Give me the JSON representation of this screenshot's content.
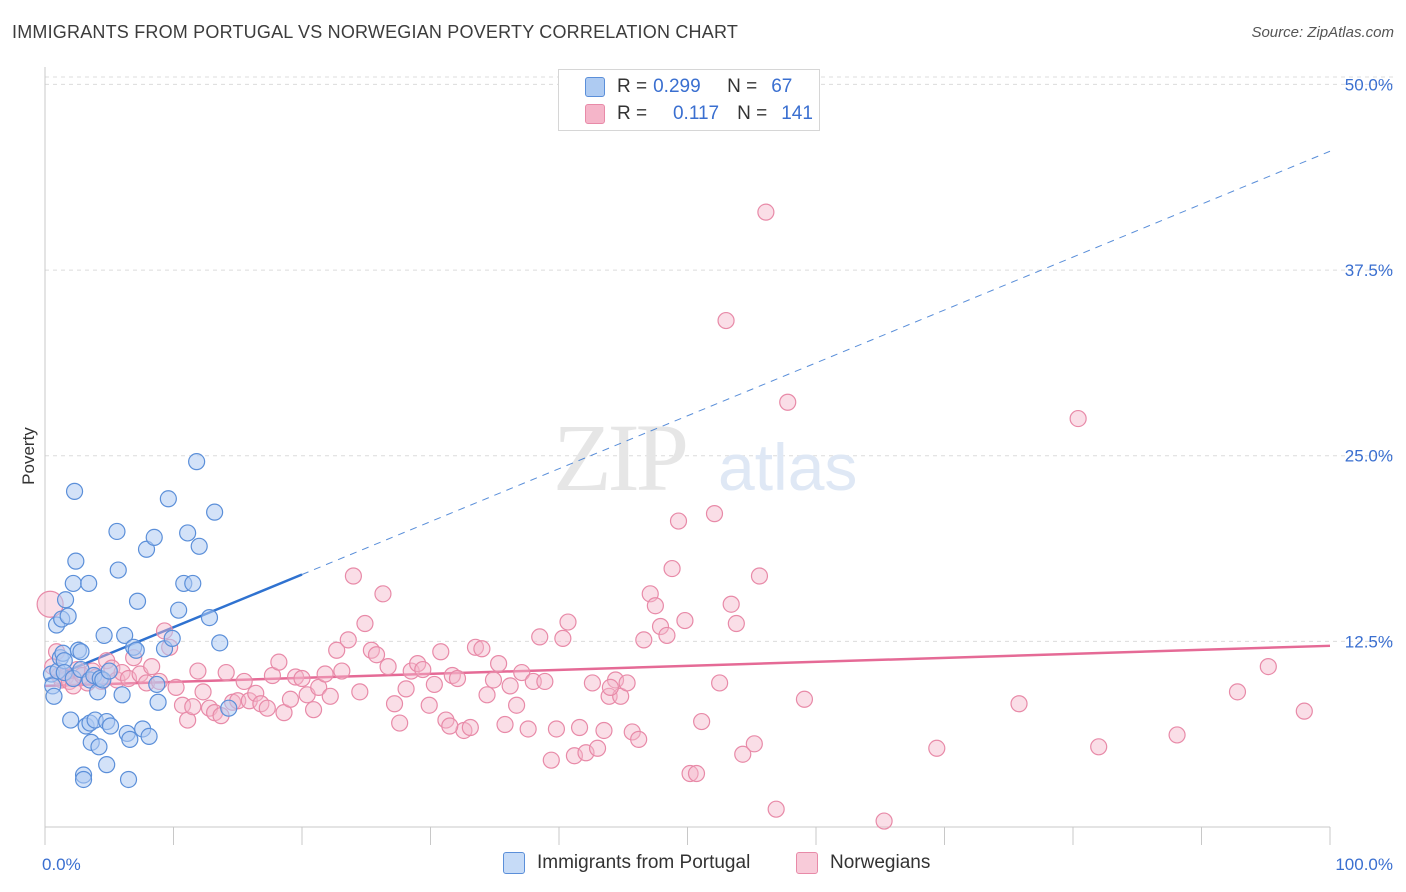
{
  "header": {
    "title": "IMMIGRANTS FROM PORTUGAL VS NORWEGIAN POVERTY CORRELATION CHART",
    "source": "Source: ZipAtlas.com"
  },
  "legend_stats": {
    "r_label": "R =",
    "n_label": "N =",
    "blue": {
      "r": "0.299",
      "n": "67"
    },
    "pink": {
      "r": "0.117",
      "n": "141"
    }
  },
  "watermark": {
    "zip": "ZIP",
    "atlas": "atlas"
  },
  "colors": {
    "blue_fill": "#aecbf2",
    "blue_stroke": "#5b8fd9",
    "blue_line": "#2f72d0",
    "pink_fill": "#f5b5c9",
    "pink_stroke": "#e88aa8",
    "pink_line": "#e56a96",
    "tick_label": "#3a6fd0",
    "grid": "#dcdcdc"
  },
  "chart_data": {
    "type": "scatter",
    "title": "IMMIGRANTS FROM PORTUGAL VS NORWEGIAN POVERTY CORRELATION CHART",
    "ylabel": "Poverty",
    "xlabel": "",
    "xlim": [
      0,
      100
    ],
    "ylim": [
      0,
      50.5
    ],
    "x_tick_labels": [
      "0.0%",
      "100.0%"
    ],
    "y_ticks": [
      12.5,
      25.0,
      37.5,
      50.0
    ],
    "y_tick_labels": [
      "12.5%",
      "25.0%",
      "37.5%",
      "50.0%"
    ],
    "grid": true,
    "legend_position": "top-center",
    "series": [
      {
        "name": "Immigrants from Portugal",
        "color": "#5b8fd9",
        "r": 0.299,
        "n": 67,
        "trend": {
          "solid": [
            [
              0,
              9.9
            ],
            [
              20,
              17.0
            ]
          ],
          "dashed": [
            [
              20,
              17.0
            ],
            [
              100,
              45.5
            ]
          ]
        },
        "points": [
          [
            0.5,
            10.3
          ],
          [
            0.6,
            9.5
          ],
          [
            0.7,
            8.8
          ],
          [
            0.9,
            13.6
          ],
          [
            1,
            10.5
          ],
          [
            1.2,
            11.4
          ],
          [
            1.3,
            14.0
          ],
          [
            1.4,
            11.7
          ],
          [
            1.5,
            11.2
          ],
          [
            1.5,
            10.4
          ],
          [
            1.6,
            15.3
          ],
          [
            1.8,
            14.2
          ],
          [
            2,
            7.2
          ],
          [
            2.2,
            10.0
          ],
          [
            2.2,
            16.4
          ],
          [
            2.3,
            22.6
          ],
          [
            2.4,
            17.9
          ],
          [
            2.6,
            11.9
          ],
          [
            2.8,
            10.6
          ],
          [
            2.8,
            11.8
          ],
          [
            3,
            3.5
          ],
          [
            3.2,
            6.8
          ],
          [
            3.4,
            16.4
          ],
          [
            3.5,
            7.0
          ],
          [
            3.5,
            9.9
          ],
          [
            3.6,
            5.7
          ],
          [
            3.8,
            10.2
          ],
          [
            3.9,
            7.2
          ],
          [
            4.1,
            9.1
          ],
          [
            4.2,
            5.4
          ],
          [
            4.3,
            10.0
          ],
          [
            4.5,
            9.9
          ],
          [
            4.6,
            12.9
          ],
          [
            4.8,
            7.1
          ],
          [
            4.8,
            4.2
          ],
          [
            5,
            10.5
          ],
          [
            5.1,
            6.8
          ],
          [
            5.6,
            19.9
          ],
          [
            5.7,
            17.3
          ],
          [
            6,
            8.9
          ],
          [
            6.2,
            12.9
          ],
          [
            6.4,
            6.3
          ],
          [
            6.6,
            5.9
          ],
          [
            6.9,
            12.1
          ],
          [
            7.1,
            11.9
          ],
          [
            7.2,
            15.2
          ],
          [
            7.6,
            6.6
          ],
          [
            7.9,
            18.7
          ],
          [
            8.1,
            6.1
          ],
          [
            8.5,
            19.5
          ],
          [
            8.7,
            9.6
          ],
          [
            8.8,
            8.4
          ],
          [
            9.3,
            12.0
          ],
          [
            9.6,
            22.1
          ],
          [
            9.9,
            12.7
          ],
          [
            10.4,
            14.6
          ],
          [
            10.8,
            16.4
          ],
          [
            11.1,
            19.8
          ],
          [
            11.5,
            16.4
          ],
          [
            11.8,
            24.6
          ],
          [
            12,
            18.9
          ],
          [
            12.8,
            14.1
          ],
          [
            13.2,
            21.2
          ],
          [
            13.6,
            12.4
          ],
          [
            14.3,
            8.0
          ],
          [
            3,
            3.2
          ],
          [
            6.5,
            3.2
          ]
        ]
      },
      {
        "name": "Norwegians",
        "color": "#e88aa8",
        "r": 0.117,
        "n": 141,
        "trend": {
          "solid": [
            [
              0,
              9.5
            ],
            [
              100,
              12.2
            ]
          ]
        },
        "points": [
          [
            0.4,
            15.0
          ],
          [
            0.6,
            10.8
          ],
          [
            0.9,
            11.8
          ],
          [
            1.1,
            10.2
          ],
          [
            1.3,
            9.9
          ],
          [
            1.6,
            10.1
          ],
          [
            1.9,
            9.8
          ],
          [
            2.2,
            9.5
          ],
          [
            2.5,
            10.6
          ],
          [
            2.9,
            10.2
          ],
          [
            3.3,
            9.7
          ],
          [
            3.7,
            10.5
          ],
          [
            4,
            10.1
          ],
          [
            4.4,
            9.8
          ],
          [
            4.8,
            11.2
          ],
          [
            5.2,
            10.7
          ],
          [
            5.6,
            9.9
          ],
          [
            6,
            10.4
          ],
          [
            6.5,
            10.0
          ],
          [
            6.9,
            11.4
          ],
          [
            7.4,
            10.3
          ],
          [
            7.9,
            9.7
          ],
          [
            8.3,
            10.8
          ],
          [
            8.9,
            9.8
          ],
          [
            9.3,
            13.2
          ],
          [
            9.7,
            12.1
          ],
          [
            10.2,
            9.4
          ],
          [
            10.7,
            8.2
          ],
          [
            11.1,
            7.2
          ],
          [
            11.5,
            8.1
          ],
          [
            11.9,
            10.5
          ],
          [
            12.3,
            9.1
          ],
          [
            12.8,
            8.0
          ],
          [
            13.2,
            7.7
          ],
          [
            13.7,
            7.5
          ],
          [
            14.1,
            10.4
          ],
          [
            14.6,
            8.4
          ],
          [
            15,
            8.5
          ],
          [
            15.5,
            9.8
          ],
          [
            15.9,
            8.5
          ],
          [
            16.4,
            9.0
          ],
          [
            16.8,
            8.3
          ],
          [
            17.3,
            8.0
          ],
          [
            17.7,
            10.2
          ],
          [
            18.2,
            11.1
          ],
          [
            18.6,
            7.7
          ],
          [
            19.1,
            8.6
          ],
          [
            19.5,
            10.1
          ],
          [
            20,
            10.0
          ],
          [
            20.4,
            8.9
          ],
          [
            20.9,
            7.9
          ],
          [
            21.3,
            9.4
          ],
          [
            21.8,
            10.3
          ],
          [
            22.2,
            8.8
          ],
          [
            22.7,
            11.9
          ],
          [
            23.1,
            10.5
          ],
          [
            23.6,
            12.6
          ],
          [
            24,
            16.9
          ],
          [
            24.5,
            9.1
          ],
          [
            24.9,
            13.7
          ],
          [
            25.4,
            11.9
          ],
          [
            25.8,
            11.6
          ],
          [
            26.3,
            15.7
          ],
          [
            26.7,
            10.8
          ],
          [
            27.2,
            8.3
          ],
          [
            27.6,
            7.0
          ],
          [
            28.1,
            9.3
          ],
          [
            28.5,
            10.5
          ],
          [
            29,
            11.0
          ],
          [
            29.4,
            10.6
          ],
          [
            29.9,
            8.2
          ],
          [
            30.3,
            9.6
          ],
          [
            30.8,
            11.8
          ],
          [
            31.2,
            7.2
          ],
          [
            31.7,
            10.2
          ],
          [
            32.1,
            10.0
          ],
          [
            32.6,
            6.5
          ],
          [
            33.1,
            6.7
          ],
          [
            33.5,
            12.1
          ],
          [
            34,
            12.0
          ],
          [
            34.4,
            8.9
          ],
          [
            34.9,
            9.9
          ],
          [
            35.3,
            11.0
          ],
          [
            35.8,
            6.9
          ],
          [
            36.2,
            9.5
          ],
          [
            36.7,
            8.2
          ],
          [
            37.1,
            10.4
          ],
          [
            37.6,
            6.6
          ],
          [
            38,
            9.8
          ],
          [
            38.5,
            12.8
          ],
          [
            38.9,
            9.8
          ],
          [
            39.4,
            4.5
          ],
          [
            39.8,
            6.6
          ],
          [
            40.3,
            12.7
          ],
          [
            40.7,
            13.8
          ],
          [
            41.2,
            4.8
          ],
          [
            41.6,
            6.7
          ],
          [
            42.1,
            5.0
          ],
          [
            42.6,
            9.7
          ],
          [
            43,
            5.3
          ],
          [
            43.5,
            6.5
          ],
          [
            43.9,
            8.8
          ],
          [
            44.4,
            9.9
          ],
          [
            44.8,
            8.8
          ],
          [
            45.3,
            9.7
          ],
          [
            45.7,
            6.4
          ],
          [
            46.2,
            5.9
          ],
          [
            46.6,
            12.6
          ],
          [
            47.1,
            15.7
          ],
          [
            47.5,
            14.9
          ],
          [
            47.9,
            13.5
          ],
          [
            48.4,
            12.9
          ],
          [
            48.8,
            17.4
          ],
          [
            49.3,
            20.6
          ],
          [
            49.8,
            13.9
          ],
          [
            50.2,
            3.6
          ],
          [
            50.7,
            3.6
          ],
          [
            51.1,
            7.1
          ],
          [
            52.1,
            21.1
          ],
          [
            52.5,
            9.7
          ],
          [
            53.4,
            15.0
          ],
          [
            53.8,
            13.7
          ],
          [
            54.3,
            4.9
          ],
          [
            55.2,
            5.6
          ],
          [
            55.6,
            16.9
          ],
          [
            56.1,
            41.4
          ],
          [
            56.9,
            1.2
          ],
          [
            59.1,
            8.6
          ],
          [
            65.3,
            0.4
          ],
          [
            69.4,
            5.3
          ],
          [
            75.8,
            8.3
          ],
          [
            80.4,
            27.5
          ],
          [
            82,
            5.4
          ],
          [
            88.1,
            6.2
          ],
          [
            92.8,
            9.1
          ],
          [
            95.2,
            10.8
          ],
          [
            98,
            7.8
          ],
          [
            53,
            34.1
          ],
          [
            57.8,
            28.6
          ],
          [
            31.5,
            6.8
          ],
          [
            44,
            9.4
          ]
        ]
      }
    ]
  },
  "bottom_legend": {
    "blue_label": "Immigrants from Portugal",
    "pink_label": "Norwegians"
  }
}
